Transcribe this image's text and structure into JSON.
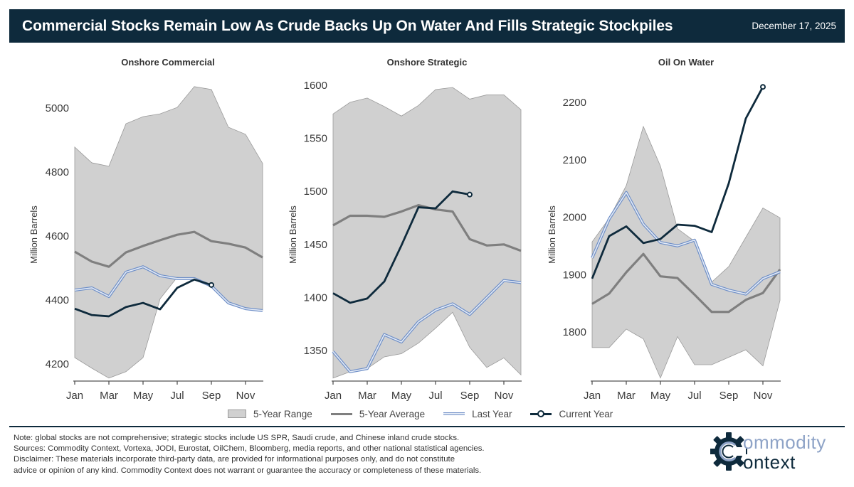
{
  "header": {
    "title": "Commercial Stocks Remain Low As Crude Backs Up On Water And Fills Strategic Stockpiles",
    "date": "December 17, 2025"
  },
  "legend": {
    "range": "5-Year Range",
    "average": "5-Year Average",
    "last_year": "Last Year",
    "current_year": "Current Year"
  },
  "colors": {
    "header_bg": "#0e2a3c",
    "range_fill": "#d0d0d0",
    "range_edge": "#9a9a9a",
    "average": "#7f7f7f",
    "last_year": "#6f8fc7",
    "current_year": "#0e2a3c"
  },
  "footer": {
    "note": "Note: global stocks are not comprehensive; strategic stocks include US SPR, Saudi crude, and Chinese inland crude stocks.",
    "sources": "Sources: Commodity Context, Vortexa, JODI, Eurostat, OilChem, Bloomberg, media reports, and other national statistical agencies.",
    "disclaimer_1": "Disclaimer: These materials incorporate third-party data, are provided for informational purposes only, and do not constitute",
    "disclaimer_2": "advice or opinion of any kind. Commodity Context does not warrant or guarantee the accuracy or completeness of these materials."
  },
  "logo": {
    "line1": "ommodity",
    "line2": "ontext"
  },
  "chart_data": [
    {
      "type": "line",
      "title": "Onshore Commercial",
      "xlabel": "",
      "ylabel": "Million Barrels",
      "x": [
        "Jan",
        "Feb",
        "Mar",
        "Apr",
        "May",
        "Jun",
        "Jul",
        "Aug",
        "Sep",
        "Oct",
        "Nov",
        "Dec"
      ],
      "xticks": [
        "Jan",
        "Mar",
        "May",
        "Jul",
        "Sep",
        "Nov"
      ],
      "yticks": [
        4200,
        4400,
        4600,
        4800,
        5000
      ],
      "ylim": [
        4140,
        5090
      ],
      "grid": false,
      "legend": "bottom",
      "series": [
        {
          "name": "5-Year Range",
          "kind": "band",
          "upper": [
            4878,
            4829,
            4818,
            4951,
            4973,
            4982,
            5002,
            5067,
            5058,
            4940,
            4918,
            4827
          ],
          "lower": [
            4220,
            4187,
            4156,
            4176,
            4220,
            4404,
            4471,
            4467,
            4444,
            4391,
            4373,
            4367
          ]
        },
        {
          "name": "5-Year Average",
          "values": [
            4551,
            4520,
            4504,
            4549,
            4569,
            4587,
            4604,
            4613,
            4584,
            4576,
            4564,
            4533
          ]
        },
        {
          "name": "Last Year",
          "values": [
            4431,
            4438,
            4411,
            4487,
            4504,
            4476,
            4467,
            4467,
            4444,
            4391,
            4373,
            4367
          ]
        },
        {
          "name": "Current Year",
          "values": [
            4373,
            4353,
            4349,
            4378,
            4391,
            4371,
            4438,
            4464,
            4447,
            null,
            null,
            null
          ]
        }
      ]
    },
    {
      "type": "line",
      "title": "Onshore Strategic",
      "xlabel": "",
      "ylabel": "Million Barrels",
      "x": [
        "Jan",
        "Feb",
        "Mar",
        "Apr",
        "May",
        "Jun",
        "Jul",
        "Aug",
        "Sep",
        "Oct",
        "Nov",
        "Dec"
      ],
      "xticks": [
        "Jan",
        "Mar",
        "May",
        "Jul",
        "Sep",
        "Nov"
      ],
      "yticks": [
        1350,
        1400,
        1450,
        1500,
        1550,
        1600
      ],
      "ylim": [
        1320,
        1605
      ],
      "grid": false,
      "legend": "bottom",
      "series": [
        {
          "name": "5-Year Range",
          "kind": "band",
          "upper": [
            1573,
            1584,
            1588,
            1580,
            1571,
            1581,
            1596,
            1598,
            1587,
            1591,
            1591,
            1577
          ],
          "lower": [
            1324,
            1330,
            1333,
            1344,
            1347,
            1357,
            1371,
            1386,
            1353,
            1334,
            1343,
            1327
          ]
        },
        {
          "name": "5-Year Average",
          "values": [
            1468,
            1477,
            1477,
            1476,
            1481,
            1487,
            1483,
            1481,
            1455,
            1449,
            1450,
            1444
          ]
        },
        {
          "name": "Last Year",
          "values": [
            1349,
            1330,
            1333,
            1365,
            1358,
            1377,
            1388,
            1394,
            1384,
            1400,
            1416,
            1414
          ]
        },
        {
          "name": "Current Year",
          "values": [
            1404,
            1395,
            1399,
            1415,
            1449,
            1485,
            1484,
            1500,
            1497,
            null,
            null,
            null
          ]
        }
      ]
    },
    {
      "type": "line",
      "title": "Oil On Water",
      "xlabel": "",
      "ylabel": "Million Barrels",
      "x": [
        "Jan",
        "Feb",
        "Mar",
        "Apr",
        "May",
        "Jun",
        "Jul",
        "Aug",
        "Sep",
        "Oct",
        "Nov",
        "Dec"
      ],
      "xticks": [
        "Jan",
        "Mar",
        "May",
        "Jul",
        "Sep",
        "Nov"
      ],
      "yticks": [
        1800,
        1900,
        2000,
        2100,
        2200
      ],
      "ylim": [
        1710,
        2245
      ],
      "grid": false,
      "legend": "bottom",
      "series": [
        {
          "name": "5-Year Range",
          "kind": "band",
          "upper": [
            1957,
            1998,
            2055,
            2158,
            2089,
            1980,
            1958,
            1887,
            1914,
            1965,
            2016,
            1999
          ],
          "lower": [
            1773,
            1773,
            1805,
            1788,
            1720,
            1792,
            1743,
            1743,
            1756,
            1769,
            1741,
            1855
          ]
        },
        {
          "name": "5-Year Average",
          "values": [
            1849,
            1867,
            1904,
            1936,
            1897,
            1894,
            1865,
            1835,
            1835,
            1856,
            1868,
            1909
          ]
        },
        {
          "name": "Last Year",
          "values": [
            1929,
            1997,
            2043,
            1988,
            1956,
            1950,
            1960,
            1883,
            1873,
            1866,
            1893,
            1905
          ]
        },
        {
          "name": "Current Year",
          "values": [
            1893,
            1967,
            1984,
            1955,
            1962,
            1987,
            1985,
            1974,
            2059,
            2172,
            2227,
            null
          ]
        }
      ]
    }
  ]
}
